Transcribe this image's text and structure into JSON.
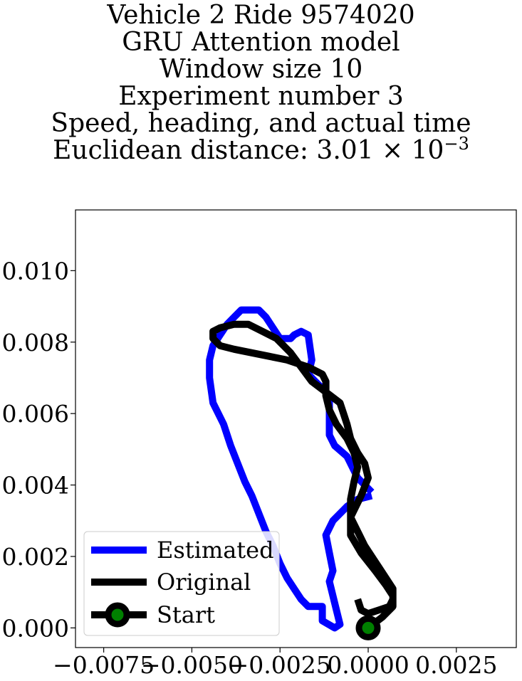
{
  "chart_data": {
    "type": "line",
    "title_lines": [
      "Vehicle 2 Ride 9574020",
      "GRU Attention model",
      "Window size 10",
      "Experiment number 3",
      "Speed, heading, and actual time"
    ],
    "title_metric_prefix": "Euclidean distance: 3.01 × 10",
    "title_metric_exponent": "−3",
    "xlim": [
      -0.0083,
      0.0042
    ],
    "ylim": [
      -0.00055,
      0.0117
    ],
    "x_ticks": [
      -0.0075,
      -0.005,
      -0.0025,
      0.0,
      0.0025
    ],
    "x_tick_labels": [
      "−0.0075",
      "−0.0050",
      "−0.0025",
      "0.0000",
      "0.0025"
    ],
    "y_ticks": [
      0.0,
      0.002,
      0.004,
      0.006,
      0.008,
      0.01
    ],
    "y_tick_labels": [
      "0.000",
      "0.002",
      "0.004",
      "0.006",
      "0.008",
      "0.010"
    ],
    "legend_position": "lower-left",
    "series": [
      {
        "name": "Estimated",
        "color": "#0000ff",
        "x": [
          0.0001,
          -0.0003,
          -0.0005,
          -0.0006,
          -0.00095,
          -0.0011,
          -0.0011,
          -0.0017,
          -0.0016,
          -0.0017,
          -0.0019,
          -0.0021,
          -0.0022,
          -0.0024,
          -0.0025,
          -0.0027,
          -0.0029,
          -0.0031,
          -0.0034,
          -0.0036,
          -0.0038,
          -0.004,
          -0.0042,
          -0.0044,
          -0.0045,
          -0.0045,
          -0.0044,
          -0.0041,
          -0.0039,
          -0.0037,
          -0.0035,
          -0.0033,
          -0.0031,
          -0.0029,
          -0.0027,
          -0.0025,
          -0.0023,
          -0.0021,
          -0.0019,
          -0.0017,
          -0.0016,
          -0.0015,
          -0.0013,
          -0.0013,
          -0.00095,
          -0.0008,
          -0.0009,
          -0.0011,
          -0.001,
          -0.0011,
          -0.0012,
          -0.001,
          -0.0006,
          -0.0003,
          0.0001
        ],
        "y": [
          0.0038,
          0.0042,
          0.0046,
          0.0048,
          0.0051,
          0.0054,
          0.0065,
          0.0071,
          0.0075,
          0.0082,
          0.0083,
          0.0082,
          0.0081,
          0.0081,
          0.0081,
          0.0084,
          0.0087,
          0.0089,
          0.0089,
          0.0089,
          0.0087,
          0.0085,
          0.0082,
          0.0079,
          0.0075,
          0.007,
          0.0063,
          0.0057,
          0.0051,
          0.0046,
          0.0041,
          0.0037,
          0.0032,
          0.0027,
          0.0023,
          0.0018,
          0.0014,
          0.0011,
          0.0008,
          0.0006,
          0.0006,
          0.0006,
          0.0006,
          0.0002,
          0.0,
          0.0001,
          0.0005,
          0.0013,
          0.0016,
          0.0021,
          0.0026,
          0.003,
          0.0034,
          0.0036,
          0.0037
        ]
      },
      {
        "name": "Original",
        "color": "#000000",
        "x": [
          0.0,
          0.0004,
          0.0007,
          0.0007,
          0.0005,
          0.0002,
          -0.0002,
          -0.0005,
          -0.0005,
          -0.0002,
          0.0,
          -0.0001,
          -0.0003,
          -0.0005,
          -0.0006,
          -0.0007,
          -0.0008,
          -0.0012,
          -0.0016,
          -0.0019,
          -0.0022,
          -0.0026,
          -0.003,
          -0.0034,
          -0.0038,
          -0.0042,
          -0.0044,
          -0.0044,
          -0.0042,
          -0.0038,
          -0.0033,
          -0.0028,
          -0.0023,
          -0.002,
          -0.0017,
          -0.0015,
          -0.0013,
          -0.0012,
          -0.0012,
          -0.0011,
          -0.0009,
          -0.0006,
          -0.0004,
          -0.0003,
          -0.0004,
          -0.0005,
          -0.0005,
          -0.0003,
          -0.0001,
          0.0001,
          0.0003,
          0.0005,
          0.0007,
          0.0007,
          0.0006,
          0.0003,
          0.0,
          -0.0002,
          -0.0003
        ],
        "y": [
          0.0,
          0.0003,
          0.0006,
          0.0009,
          0.0012,
          0.0016,
          0.0021,
          0.0026,
          0.0031,
          0.0037,
          0.0042,
          0.0046,
          0.0049,
          0.0053,
          0.0057,
          0.006,
          0.0063,
          0.0066,
          0.0069,
          0.0073,
          0.0077,
          0.0081,
          0.0083,
          0.0085,
          0.0085,
          0.0084,
          0.0083,
          0.0081,
          0.0079,
          0.0078,
          0.0077,
          0.0076,
          0.0075,
          0.0074,
          0.0073,
          0.0072,
          0.0071,
          0.0069,
          0.0065,
          0.0061,
          0.0057,
          0.0053,
          0.0049,
          0.0045,
          0.0041,
          0.0036,
          0.0031,
          0.0027,
          0.0023,
          0.002,
          0.0017,
          0.0014,
          0.0011,
          0.0008,
          0.0006,
          0.0005,
          0.0004,
          0.0005,
          0.0008
        ]
      }
    ],
    "start_point": {
      "name": "Start",
      "x": 0.0,
      "y": 0.0,
      "color": "#008000"
    }
  }
}
